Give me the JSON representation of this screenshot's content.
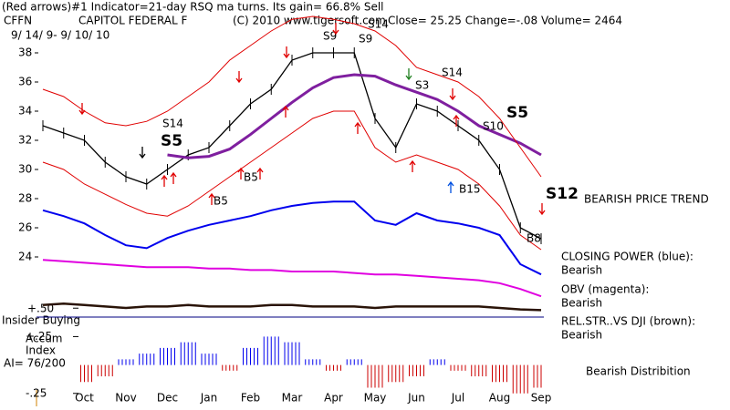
{
  "chart_data": [
    {
      "type": "line",
      "title": "(Red arrows)#1 Indicator=21-day RSQ ma turns. Its gain= 66.8% Sell",
      "symbol": "CFFN",
      "company": "CAPITOL FEDERAL F",
      "copyright": "(C) 2010 www.tigersoft.com",
      "quote": "Close=  25.25  Change=-.08 Volume= 2464",
      "date_range": "9/ 14/ 9- 9/ 10/ 10",
      "trend_label": "BEARISH PRICE TREND",
      "annotations": [
        "S5",
        "S14",
        "S9",
        "S9",
        "S14",
        "S3",
        "S14",
        "S5",
        "S10",
        "S12",
        "B5",
        "B5",
        "B15",
        "B8"
      ],
      "categories": [
        null,
        null,
        "Oct",
        null,
        "Nov",
        null,
        "Dec",
        null,
        "Jan",
        null,
        "Feb",
        null,
        "Mar",
        null,
        "Apr",
        null,
        "May",
        null,
        "Jun",
        null,
        "Jul",
        null,
        "Aug",
        null,
        "Sep"
      ],
      "ylim": [
        20,
        41
      ],
      "yticks": [
        24,
        26,
        28,
        30,
        32,
        34,
        36,
        38
      ],
      "series": [
        {
          "color": "#000000",
          "values": [
            33,
            32.5,
            32,
            30.5,
            29.5,
            29,
            30,
            31,
            31.5,
            33,
            34.5,
            35.5,
            37.5,
            38,
            38,
            38,
            33.5,
            31.5,
            34.5,
            34,
            33,
            32,
            30,
            26,
            25.25
          ]
        },
        {
          "color": "#7f1f9f",
          "values": [
            null,
            null,
            null,
            null,
            null,
            null,
            31,
            30.8,
            30.9,
            31.4,
            32.4,
            33.5,
            34.6,
            35.6,
            36.3,
            36.5,
            36.4,
            35.8,
            35.3,
            34.8,
            34,
            33,
            32.4,
            31.8,
            31
          ]
        },
        {
          "color": "#e00000",
          "values": [
            35.5,
            35,
            34,
            33.2,
            33,
            33.3,
            34,
            35,
            36,
            37.5,
            38.5,
            39.5,
            40.3,
            40.5,
            40.3,
            40,
            39.5,
            38.5,
            37,
            36.5,
            36,
            35,
            33.5,
            31.5,
            29.5
          ]
        },
        {
          "color": "#e00000",
          "values": [
            30.5,
            30,
            29,
            28.3,
            27.6,
            27,
            26.8,
            27.5,
            28.5,
            29.5,
            30.5,
            31.5,
            32.5,
            33.5,
            34,
            34,
            31.5,
            30.5,
            31,
            30.5,
            30,
            29,
            27.5,
            25.5,
            24.5
          ]
        },
        {
          "name": "CLOSING POWER (blue):",
          "status": "Bearish",
          "color": "#0000ee",
          "values": [
            27.2,
            26.8,
            26.3,
            25.5,
            24.8,
            24.6,
            25.3,
            25.8,
            26.2,
            26.5,
            26.8,
            27.2,
            27.5,
            27.7,
            27.8,
            27.8,
            26.5,
            26.2,
            27,
            26.5,
            26.3,
            26,
            25.5,
            23.5,
            22.8
          ]
        },
        {
          "name": "OBV (magenta):",
          "status": "Bearish",
          "color": "#e000e0",
          "values": [
            23.8,
            23.7,
            23.6,
            23.5,
            23.4,
            23.3,
            23.3,
            23.3,
            23.2,
            23.2,
            23.1,
            23.1,
            23,
            23,
            23,
            22.9,
            22.8,
            22.8,
            22.7,
            22.6,
            22.5,
            22.4,
            22.2,
            21.8,
            21.3
          ]
        },
        {
          "name": "REL.STR..VS DJI (brown):",
          "status": "Bearish",
          "color": "#2a1408",
          "values": [
            20.7,
            20.8,
            20.7,
            20.6,
            20.5,
            20.6,
            20.6,
            20.7,
            20.6,
            20.6,
            20.6,
            20.7,
            20.7,
            20.6,
            20.6,
            20.6,
            20.5,
            20.6,
            20.6,
            20.6,
            20.6,
            20.6,
            20.5,
            20.4,
            20.35
          ]
        }
      ]
    },
    {
      "type": "bar",
      "insider_label": "Insider Buying",
      "label_lines": [
        "Accum",
        "Index"
      ],
      "ai_label": "AI= 76/200",
      "distribution_label": "Bearish Distribition",
      "ylim": [
        -0.3,
        0.55
      ],
      "yticks": [
        {
          "value": 0.5,
          "label": "+.50"
        },
        {
          "value": 0.25,
          "label": "+.25"
        },
        {
          "value": -0.25,
          "label": "-.25"
        }
      ],
      "colors": {
        "positive": "#0000ee",
        "negative": "#cc0000"
      },
      "values": [
        0,
        -0.1,
        -0.15,
        -0.1,
        0.05,
        0.1,
        0.15,
        0.2,
        0.1,
        -0.05,
        0.15,
        0.25,
        0.2,
        0.05,
        -0.05,
        0.05,
        -0.2,
        -0.15,
        -0.1,
        0.05,
        -0.05,
        -0.1,
        -0.15,
        -0.25,
        -0.2
      ]
    }
  ]
}
